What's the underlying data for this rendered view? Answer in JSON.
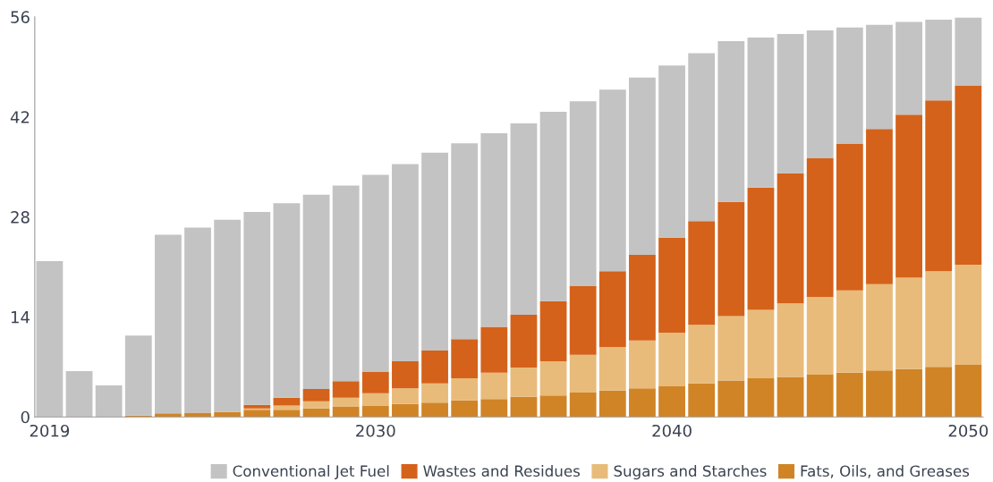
{
  "chart_data": {
    "type": "bar",
    "stacked": true,
    "categories": [
      "2019",
      null,
      null,
      null,
      null,
      null,
      null,
      null,
      null,
      null,
      null,
      "2030",
      null,
      null,
      null,
      null,
      null,
      null,
      null,
      null,
      null,
      "2040",
      null,
      null,
      null,
      null,
      null,
      null,
      null,
      null,
      null,
      "2050"
    ],
    "series": [
      {
        "name": "Fats, Oils, and Greases",
        "color": "#d08426",
        "values": [
          0,
          0,
          0,
          0.2,
          0.5,
          0.6,
          0.7,
          1.0,
          1.0,
          1.2,
          1.4,
          1.6,
          1.8,
          2.0,
          2.3,
          2.5,
          2.8,
          3.0,
          3.4,
          3.7,
          4.0,
          4.3,
          4.7,
          5.1,
          5.4,
          5.6,
          5.9,
          6.2,
          6.5,
          6.7,
          7.0,
          7.3
        ]
      },
      {
        "name": "Sugars and Starches",
        "color": "#e8bb7a",
        "values": [
          0,
          0,
          0,
          0,
          0,
          0,
          0,
          0.2,
          0.6,
          1.0,
          1.3,
          1.7,
          2.2,
          2.7,
          3.1,
          3.7,
          4.1,
          4.8,
          5.3,
          6.1,
          6.7,
          7.5,
          8.2,
          9.0,
          9.6,
          10.3,
          10.9,
          11.5,
          12.1,
          12.8,
          13.4,
          14.0
        ]
      },
      {
        "name": "Wastes and Residues",
        "color": "#d4621a",
        "values": [
          0,
          0,
          0,
          0,
          0,
          0,
          0,
          0.5,
          1.1,
          1.7,
          2.3,
          3.0,
          3.8,
          4.6,
          5.5,
          6.4,
          7.4,
          8.4,
          9.6,
          10.6,
          12.0,
          13.3,
          14.5,
          16.0,
          17.1,
          18.2,
          19.4,
          20.5,
          21.7,
          22.8,
          23.9,
          25.1
        ]
      },
      {
        "name": "Conventional Jet Fuel",
        "color": "#c3c3c3",
        "values": [
          21.8,
          6.4,
          4.4,
          11.2,
          25.0,
          25.9,
          26.9,
          27.0,
          27.2,
          27.2,
          27.4,
          27.6,
          27.6,
          27.7,
          27.4,
          27.1,
          26.8,
          26.5,
          25.9,
          25.4,
          24.8,
          24.1,
          23.5,
          22.5,
          21.0,
          19.5,
          17.9,
          16.3,
          14.6,
          13.0,
          11.3,
          9.5
        ]
      }
    ],
    "ylim": [
      0,
      56
    ],
    "yticks": [
      0,
      14,
      28,
      42,
      56
    ],
    "grid": false,
    "legend": "bottom right"
  }
}
